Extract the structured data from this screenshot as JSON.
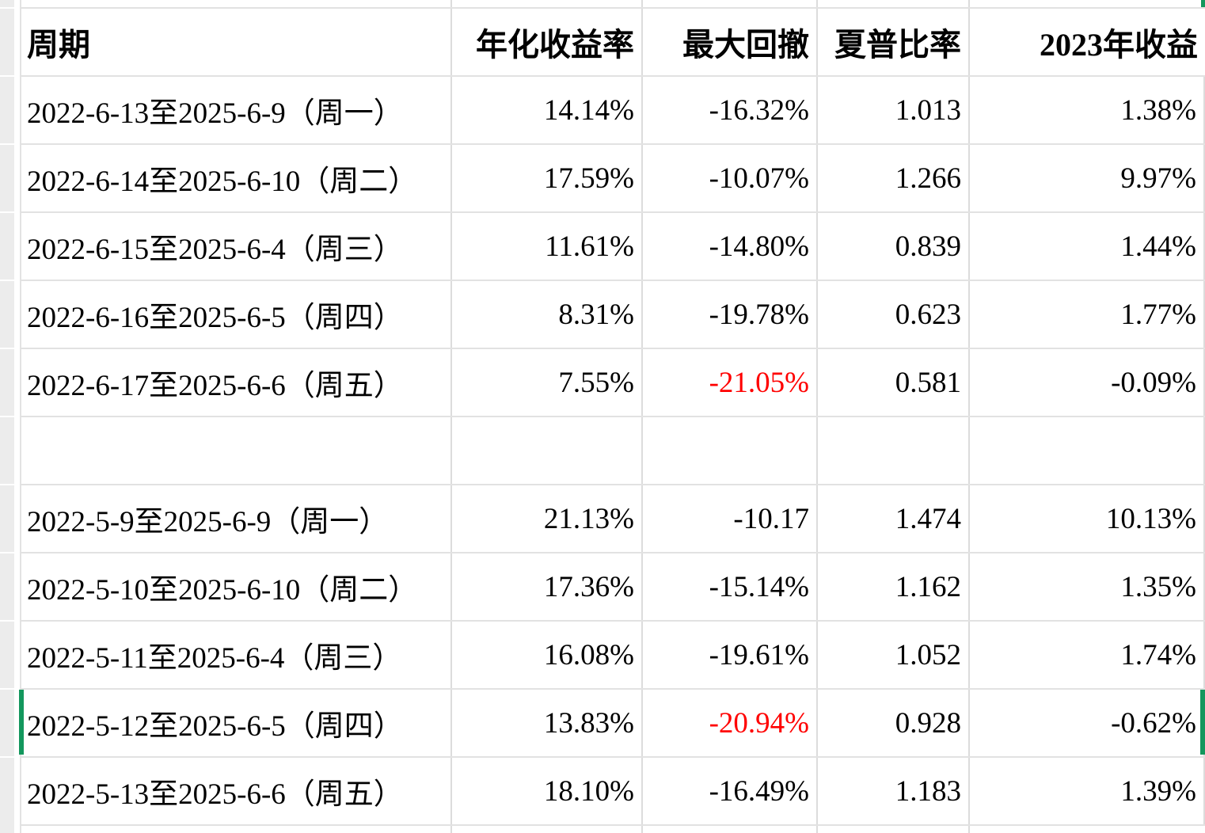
{
  "app": {
    "type": "spreadsheet-table"
  },
  "colors": {
    "selection_green": "#13975d",
    "negative_red": "#ff0000",
    "gridline": "#dcdcdc",
    "row_header_gray": "#ececec"
  },
  "table": {
    "columns": [
      "周期",
      "年化收益率",
      "最大回撤",
      "夏普比率",
      "2023年收益"
    ],
    "rows": [
      {
        "period": "2022-6-13至2025-6-9（周一）",
        "annualized": "14.14%",
        "max_drawdown": "-16.32%",
        "sharpe": "1.013",
        "return_2023": "1.38%",
        "red_cells": [],
        "selected": false
      },
      {
        "period": "2022-6-14至2025-6-10（周二）",
        "annualized": "17.59%",
        "max_drawdown": "-10.07%",
        "sharpe": "1.266",
        "return_2023": "9.97%",
        "red_cells": [],
        "selected": false
      },
      {
        "period": "2022-6-15至2025-6-4（周三）",
        "annualized": "11.61%",
        "max_drawdown": "-14.80%",
        "sharpe": "0.839",
        "return_2023": "1.44%",
        "red_cells": [],
        "selected": false
      },
      {
        "period": "2022-6-16至2025-6-5（周四）",
        "annualized": "8.31%",
        "max_drawdown": "-19.78%",
        "sharpe": "0.623",
        "return_2023": "1.77%",
        "red_cells": [],
        "selected": false
      },
      {
        "period": "2022-6-17至2025-6-6（周五）",
        "annualized": "7.55%",
        "max_drawdown": "-21.05%",
        "sharpe": "0.581",
        "return_2023": "-0.09%",
        "red_cells": [
          "max_drawdown"
        ],
        "selected": false
      },
      {
        "period": "",
        "annualized": "",
        "max_drawdown": "",
        "sharpe": "",
        "return_2023": "",
        "red_cells": [],
        "selected": false
      },
      {
        "period": "2022-5-9至2025-6-9（周一）",
        "annualized": "21.13%",
        "max_drawdown": "-10.17",
        "sharpe": "1.474",
        "return_2023": "10.13%",
        "red_cells": [],
        "selected": false
      },
      {
        "period": "2022-5-10至2025-6-10（周二）",
        "annualized": "17.36%",
        "max_drawdown": "-15.14%",
        "sharpe": "1.162",
        "return_2023": "1.35%",
        "red_cells": [],
        "selected": false
      },
      {
        "period": "2022-5-11至2025-6-4（周三）",
        "annualized": "16.08%",
        "max_drawdown": "-19.61%",
        "sharpe": "1.052",
        "return_2023": "1.74%",
        "red_cells": [],
        "selected": false
      },
      {
        "period": "2022-5-12至2025-6-5（周四）",
        "annualized": "13.83%",
        "max_drawdown": "-20.94%",
        "sharpe": "0.928",
        "return_2023": "-0.62%",
        "red_cells": [
          "max_drawdown"
        ],
        "selected": true
      },
      {
        "period": "2022-5-13至2025-6-6（周五）",
        "annualized": "18.10%",
        "max_drawdown": "-16.49%",
        "sharpe": "1.183",
        "return_2023": "1.39%",
        "red_cells": [],
        "selected": false
      }
    ]
  }
}
